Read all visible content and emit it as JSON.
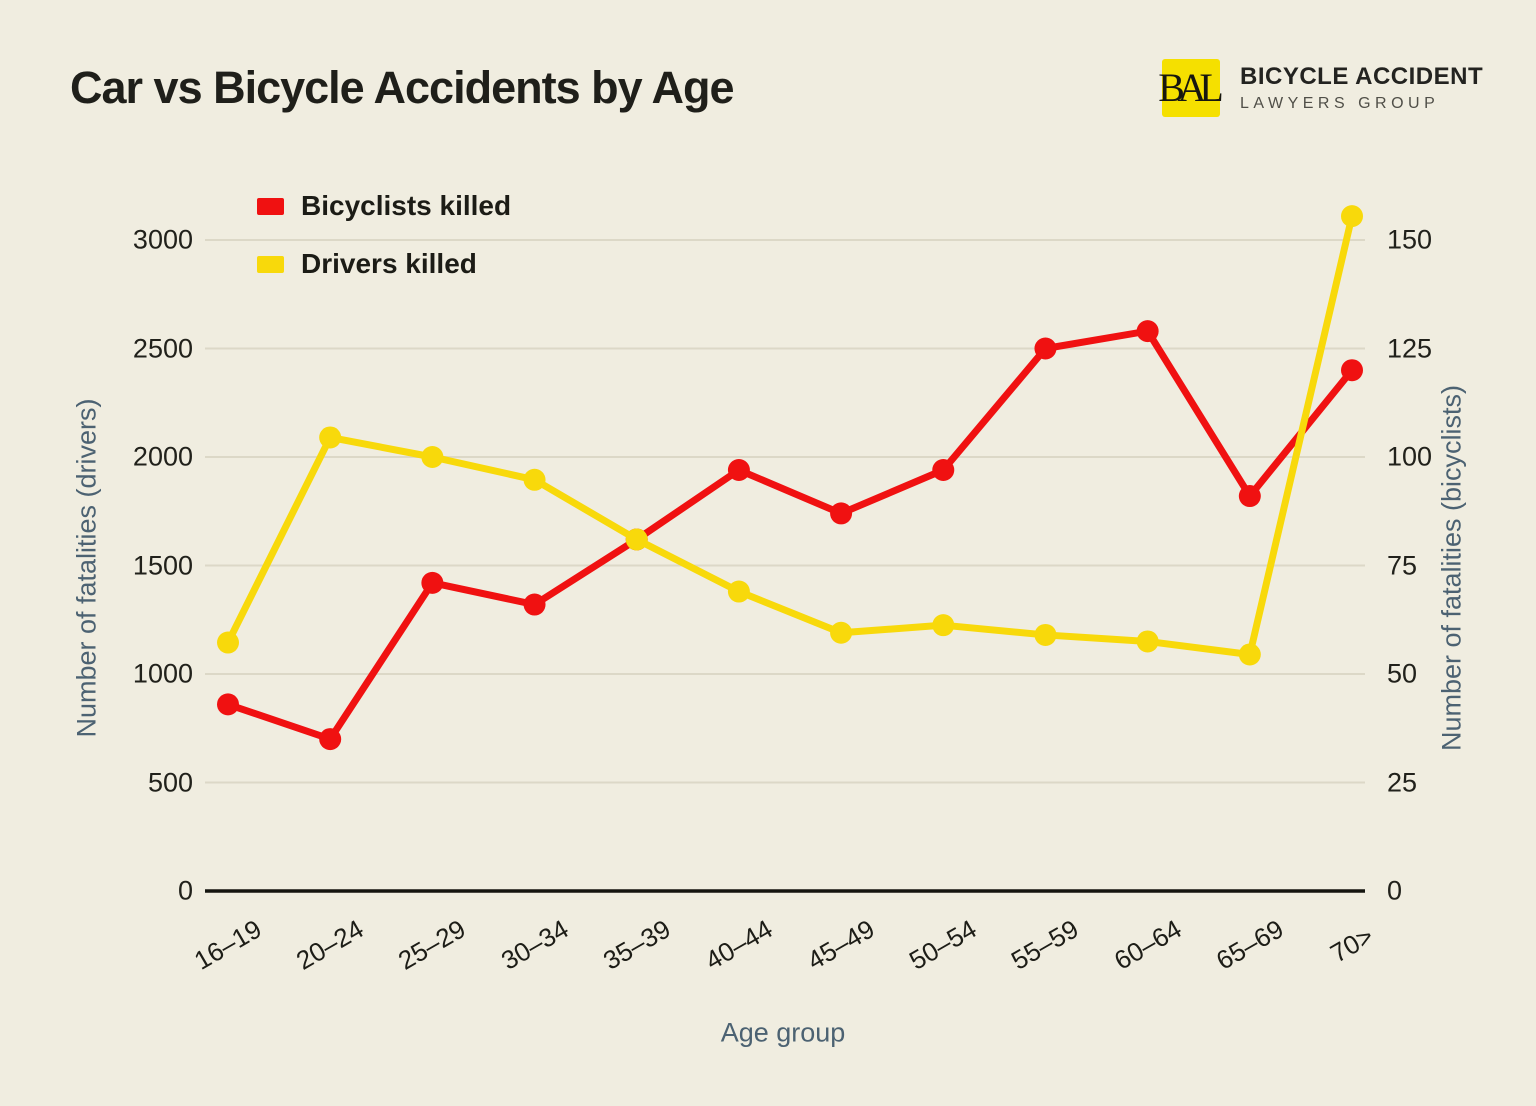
{
  "header": {
    "title": "Car vs Bicycle Accidents by Age",
    "logo": {
      "monogram": "BAL",
      "line1": "BICYCLE ACCIDENT",
      "line2": "LAWYERS GROUP",
      "box_color": "#F5E000"
    }
  },
  "chart_data": {
    "type": "line",
    "title": "Car vs Bicycle Accidents by Age",
    "categories": [
      "16–19",
      "20–24",
      "25–29",
      "30–34",
      "35–39",
      "40–44",
      "45–49",
      "50–54",
      "55–59",
      "60–64",
      "65–69",
      "70>"
    ],
    "series": [
      {
        "name": "Bicyclists killed",
        "axis": "right",
        "color": "#F01111",
        "values": [
          43,
          35,
          71,
          66,
          81,
          97,
          87,
          97,
          125,
          129,
          91,
          120
        ]
      },
      {
        "name": "Drivers killed",
        "axis": "left",
        "color": "#F8D90B",
        "values": [
          1145,
          2090,
          2000,
          1895,
          1620,
          1380,
          1190,
          1225,
          1180,
          1150,
          1090,
          3110
        ]
      }
    ],
    "xlabel": "Age group",
    "ylabel_left": "Number of fatalities (drivers)",
    "ylabel_right": "Number of fatalities (bicyclists)",
    "ylim_left": [
      0,
      3000
    ],
    "ylim_right": [
      0,
      150
    ],
    "yticks_left": [
      0,
      500,
      1000,
      1500,
      2000,
      2500,
      3000
    ],
    "yticks_right": [
      0,
      25,
      50,
      75,
      100,
      125,
      150
    ],
    "grid": true,
    "legend_position": "top-left"
  },
  "colors": {
    "background": "#F0EDE0",
    "gridline": "#DCD8C7",
    "axis_line": "#15150F",
    "tick_label": "#21211B",
    "axis_title": "#4C6272"
  }
}
